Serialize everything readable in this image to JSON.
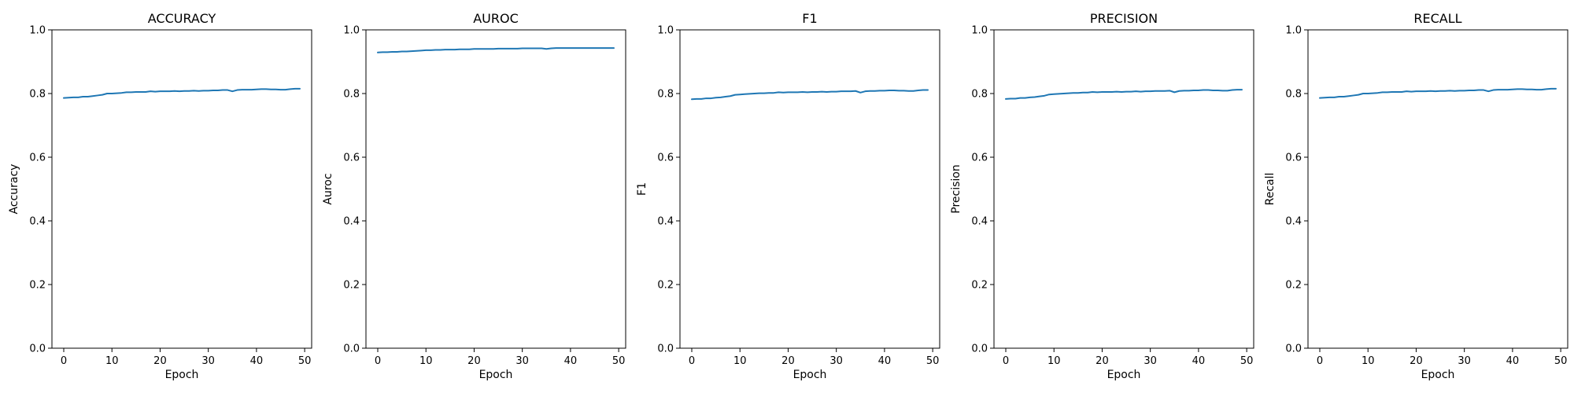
{
  "line_color": "#1f77b4",
  "chart_data": [
    {
      "type": "line",
      "title": "ACCURACY",
      "xlabel": "Epoch",
      "ylabel": "Accuracy",
      "xlim": [
        -2.45,
        51.45
      ],
      "ylim": [
        0.0,
        1.0
      ],
      "xticks": [
        0,
        10,
        20,
        30,
        40,
        50
      ],
      "yticks": [
        0.0,
        0.2,
        0.4,
        0.6,
        0.8,
        1.0
      ],
      "grid": false,
      "x": [
        0,
        1,
        2,
        3,
        4,
        5,
        6,
        7,
        8,
        9,
        10,
        11,
        12,
        13,
        14,
        15,
        16,
        17,
        18,
        19,
        20,
        21,
        22,
        23,
        24,
        25,
        26,
        27,
        28,
        29,
        30,
        31,
        32,
        33,
        34,
        35,
        36,
        37,
        38,
        39,
        40,
        41,
        42,
        43,
        44,
        45,
        46,
        47,
        48,
        49
      ],
      "values": [
        0.786,
        0.787,
        0.788,
        0.788,
        0.79,
        0.79,
        0.792,
        0.794,
        0.796,
        0.8,
        0.8,
        0.801,
        0.802,
        0.804,
        0.804,
        0.805,
        0.805,
        0.805,
        0.807,
        0.806,
        0.807,
        0.807,
        0.807,
        0.808,
        0.807,
        0.808,
        0.808,
        0.809,
        0.808,
        0.809,
        0.809,
        0.81,
        0.81,
        0.811,
        0.811,
        0.807,
        0.811,
        0.812,
        0.812,
        0.812,
        0.813,
        0.814,
        0.814,
        0.813,
        0.813,
        0.812,
        0.812,
        0.814,
        0.815,
        0.815
      ]
    },
    {
      "type": "line",
      "title": "AUROC",
      "xlabel": "Epoch",
      "ylabel": "Auroc",
      "xlim": [
        -2.45,
        51.45
      ],
      "ylim": [
        0.0,
        1.0
      ],
      "xticks": [
        0,
        10,
        20,
        30,
        40,
        50
      ],
      "yticks": [
        0.0,
        0.2,
        0.4,
        0.6,
        0.8,
        1.0
      ],
      "grid": false,
      "x": [
        0,
        1,
        2,
        3,
        4,
        5,
        6,
        7,
        8,
        9,
        10,
        11,
        12,
        13,
        14,
        15,
        16,
        17,
        18,
        19,
        20,
        21,
        22,
        23,
        24,
        25,
        26,
        27,
        28,
        29,
        30,
        31,
        32,
        33,
        34,
        35,
        36,
        37,
        38,
        39,
        40,
        41,
        42,
        43,
        44,
        45,
        46,
        47,
        48,
        49
      ],
      "values": [
        0.929,
        0.93,
        0.93,
        0.931,
        0.931,
        0.932,
        0.932,
        0.933,
        0.934,
        0.935,
        0.936,
        0.936,
        0.937,
        0.937,
        0.938,
        0.938,
        0.938,
        0.939,
        0.939,
        0.939,
        0.94,
        0.94,
        0.94,
        0.94,
        0.94,
        0.941,
        0.941,
        0.941,
        0.941,
        0.941,
        0.942,
        0.942,
        0.942,
        0.942,
        0.942,
        0.94,
        0.942,
        0.943,
        0.943,
        0.943,
        0.943,
        0.943,
        0.943,
        0.943,
        0.943,
        0.943,
        0.943,
        0.943,
        0.943,
        0.943
      ]
    },
    {
      "type": "line",
      "title": "F1",
      "xlabel": "Epoch",
      "ylabel": "F1",
      "xlim": [
        -2.45,
        51.45
      ],
      "ylim": [
        0.0,
        1.0
      ],
      "xticks": [
        0,
        10,
        20,
        30,
        40,
        50
      ],
      "yticks": [
        0.0,
        0.2,
        0.4,
        0.6,
        0.8,
        1.0
      ],
      "grid": false,
      "x": [
        0,
        1,
        2,
        3,
        4,
        5,
        6,
        7,
        8,
        9,
        10,
        11,
        12,
        13,
        14,
        15,
        16,
        17,
        18,
        19,
        20,
        21,
        22,
        23,
        24,
        25,
        26,
        27,
        28,
        29,
        30,
        31,
        32,
        33,
        34,
        35,
        36,
        37,
        38,
        39,
        40,
        41,
        42,
        43,
        44,
        45,
        46,
        47,
        48,
        49
      ],
      "values": [
        0.782,
        0.783,
        0.783,
        0.785,
        0.785,
        0.787,
        0.788,
        0.79,
        0.792,
        0.796,
        0.797,
        0.798,
        0.799,
        0.8,
        0.801,
        0.801,
        0.802,
        0.802,
        0.804,
        0.803,
        0.804,
        0.804,
        0.804,
        0.805,
        0.804,
        0.805,
        0.805,
        0.806,
        0.805,
        0.806,
        0.806,
        0.807,
        0.807,
        0.807,
        0.808,
        0.803,
        0.807,
        0.808,
        0.808,
        0.809,
        0.809,
        0.81,
        0.81,
        0.809,
        0.809,
        0.808,
        0.808,
        0.81,
        0.811,
        0.811
      ]
    },
    {
      "type": "line",
      "title": "PRECISION",
      "xlabel": "Epoch",
      "ylabel": "Precision",
      "xlim": [
        -2.45,
        51.45
      ],
      "ylim": [
        0.0,
        1.0
      ],
      "xticks": [
        0,
        10,
        20,
        30,
        40,
        50
      ],
      "yticks": [
        0.0,
        0.2,
        0.4,
        0.6,
        0.8,
        1.0
      ],
      "grid": false,
      "x": [
        0,
        1,
        2,
        3,
        4,
        5,
        6,
        7,
        8,
        9,
        10,
        11,
        12,
        13,
        14,
        15,
        16,
        17,
        18,
        19,
        20,
        21,
        22,
        23,
        24,
        25,
        26,
        27,
        28,
        29,
        30,
        31,
        32,
        33,
        34,
        35,
        36,
        37,
        38,
        39,
        40,
        41,
        42,
        43,
        44,
        45,
        46,
        47,
        48,
        49
      ],
      "values": [
        0.783,
        0.784,
        0.784,
        0.786,
        0.786,
        0.788,
        0.789,
        0.791,
        0.793,
        0.797,
        0.798,
        0.799,
        0.8,
        0.801,
        0.802,
        0.802,
        0.803,
        0.803,
        0.805,
        0.804,
        0.805,
        0.805,
        0.805,
        0.806,
        0.805,
        0.806,
        0.806,
        0.807,
        0.806,
        0.807,
        0.807,
        0.808,
        0.808,
        0.808,
        0.809,
        0.804,
        0.808,
        0.809,
        0.809,
        0.81,
        0.81,
        0.811,
        0.811,
        0.81,
        0.81,
        0.809,
        0.809,
        0.811,
        0.812,
        0.812
      ]
    },
    {
      "type": "line",
      "title": "RECALL",
      "xlabel": "Epoch",
      "ylabel": "Recall",
      "xlim": [
        -2.45,
        51.45
      ],
      "ylim": [
        0.0,
        1.0
      ],
      "xticks": [
        0,
        10,
        20,
        30,
        40,
        50
      ],
      "yticks": [
        0.0,
        0.2,
        0.4,
        0.6,
        0.8,
        1.0
      ],
      "grid": false,
      "x": [
        0,
        1,
        2,
        3,
        4,
        5,
        6,
        7,
        8,
        9,
        10,
        11,
        12,
        13,
        14,
        15,
        16,
        17,
        18,
        19,
        20,
        21,
        22,
        23,
        24,
        25,
        26,
        27,
        28,
        29,
        30,
        31,
        32,
        33,
        34,
        35,
        36,
        37,
        38,
        39,
        40,
        41,
        42,
        43,
        44,
        45,
        46,
        47,
        48,
        49
      ],
      "values": [
        0.786,
        0.787,
        0.788,
        0.788,
        0.79,
        0.79,
        0.792,
        0.794,
        0.796,
        0.8,
        0.8,
        0.801,
        0.802,
        0.804,
        0.804,
        0.805,
        0.805,
        0.805,
        0.807,
        0.806,
        0.807,
        0.807,
        0.807,
        0.808,
        0.807,
        0.808,
        0.808,
        0.809,
        0.808,
        0.809,
        0.809,
        0.81,
        0.81,
        0.811,
        0.811,
        0.807,
        0.811,
        0.812,
        0.812,
        0.812,
        0.813,
        0.814,
        0.814,
        0.813,
        0.813,
        0.812,
        0.812,
        0.814,
        0.815,
        0.815
      ]
    }
  ]
}
